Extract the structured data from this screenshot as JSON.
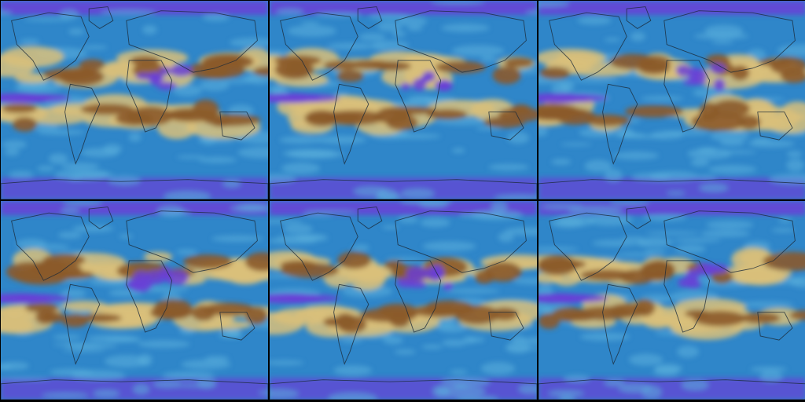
{
  "figure": {
    "panels": [
      {
        "id": "p1",
        "row": 0,
        "col": 0
      },
      {
        "id": "p2",
        "row": 0,
        "col": 1
      },
      {
        "id": "p3",
        "row": 0,
        "col": 2
      },
      {
        "id": "p4",
        "row": 1,
        "col": 0
      },
      {
        "id": "p5",
        "row": 1,
        "col": 1
      },
      {
        "id": "p6",
        "row": 1,
        "col": 2
      }
    ],
    "colors": {
      "ocean_high": "#2f86c9",
      "ocean_light": "#5bb0dc",
      "very_high": "#6a3fd6",
      "dry": "#8b5a2b",
      "mid_dry": "#d9bf7a",
      "coast": "#1b2a3a",
      "background": "#000000"
    }
  }
}
